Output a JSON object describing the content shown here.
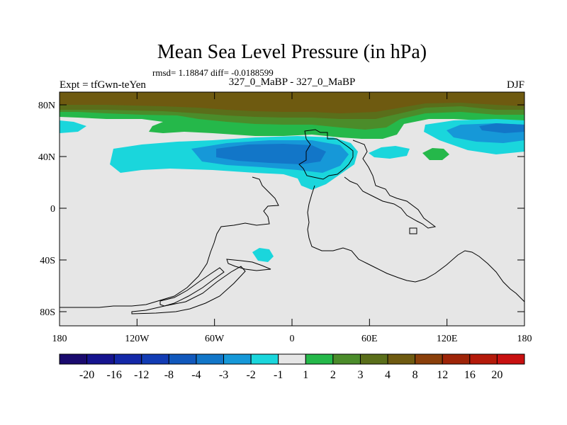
{
  "chart_data": {
    "type": "heatmap",
    "title": "Mean Sea Level Pressure (in hPa)",
    "subtitle": "rmsd= 1.18847 diff= -0.0188599",
    "experiment_label": "Expt = tfGwn-teYen",
    "comparison_label": "327_0_MaBP - 327_0_MaBP",
    "season": "DJF",
    "x_tick_labels": [
      "180",
      "120W",
      "60W",
      "0",
      "60E",
      "120E",
      "180"
    ],
    "y_tick_labels": [
      "80N",
      "40N",
      "0",
      "40S",
      "80S"
    ],
    "xlim": [
      -180,
      180
    ],
    "ylim": [
      -90,
      90
    ],
    "colorbar": {
      "labels": [
        "-20",
        "-16",
        "-12",
        "-8",
        "-4",
        "-3",
        "-2",
        "-1",
        "1",
        "2",
        "3",
        "4",
        "8",
        "12",
        "16",
        "20"
      ],
      "colors": [
        "#1a0a6e",
        "#16148f",
        "#1428a8",
        "#123cb4",
        "#1158bc",
        "#1276c8",
        "#1698d8",
        "#1ad6dc",
        "#e6e6e6",
        "#25b84a",
        "#4b8c2a",
        "#5a6e1a",
        "#6e5a10",
        "#8a3f0a",
        "#9e2408",
        "#b41a0a",
        "#c81010"
      ]
    },
    "fields": [
      {
        "level": "4 to 8",
        "region": "north polar band, 70N-90N"
      },
      {
        "level": "-3 to -1",
        "region": "North Atlantic / Europe low, 25N-55N"
      },
      {
        "level": "-3 to -1",
        "region": "North Pacific low, 40N-65N"
      },
      {
        "level": "1 to 2",
        "region": "Central Asia high, ~40N 120E"
      },
      {
        "level": "-2 to -1",
        "region": "South Atlantic small low, ~35S 15W"
      }
    ]
  }
}
